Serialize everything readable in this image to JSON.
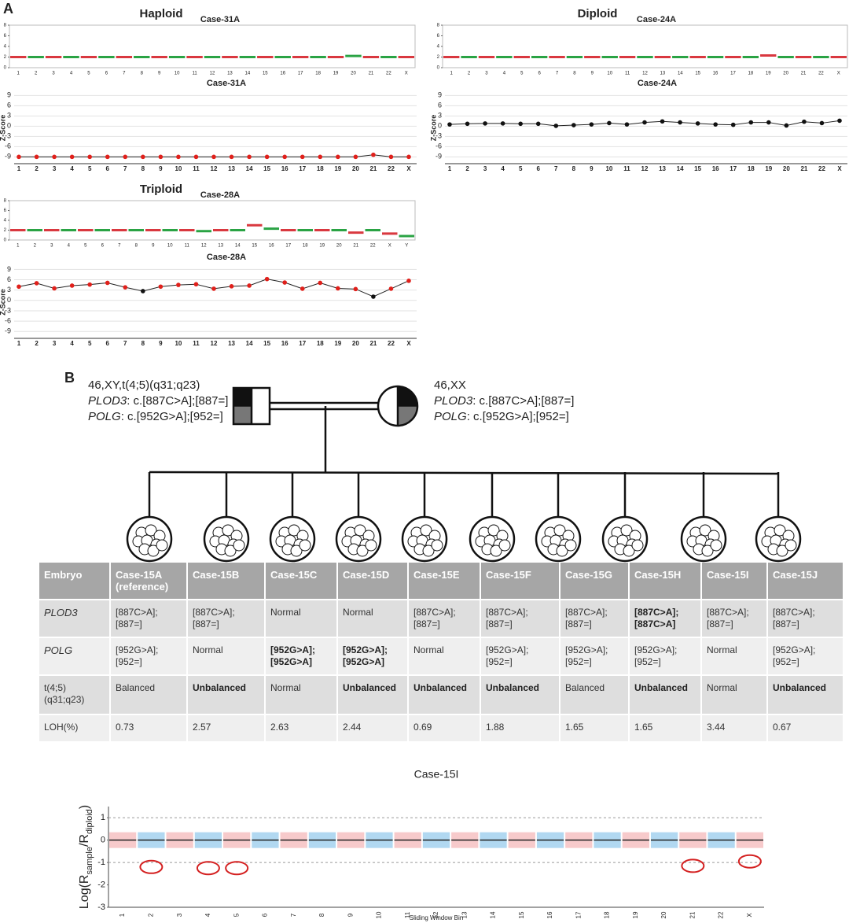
{
  "panel_a_label": "A",
  "panel_b_label": "B",
  "chart_data": [
    {
      "type": "cnv",
      "title": "Haploid",
      "subtitle": "Case-31A",
      "categories": [
        "1",
        "2",
        "3",
        "4",
        "5",
        "6",
        "7",
        "8",
        "9",
        "10",
        "11",
        "12",
        "13",
        "14",
        "15",
        "16",
        "17",
        "18",
        "19",
        "20",
        "21",
        "22",
        "X"
      ],
      "values": [
        2,
        2,
        2,
        2,
        2,
        2,
        2,
        2,
        2,
        2,
        2,
        2,
        2,
        2,
        2,
        2,
        2,
        2,
        2,
        2.2,
        2,
        2,
        2
      ],
      "colors": [
        "#d9383f",
        "#2aa344"
      ],
      "ylim": [
        0,
        8
      ],
      "yticks": [
        0,
        2,
        4,
        6,
        8
      ],
      "grid": false
    },
    {
      "type": "line",
      "title": "Case-31A",
      "ylabel": "Z-Score",
      "categories": [
        "1",
        "2",
        "3",
        "4",
        "5",
        "6",
        "7",
        "8",
        "9",
        "10",
        "11",
        "12",
        "13",
        "14",
        "15",
        "16",
        "17",
        "18",
        "19",
        "20",
        "21",
        "22",
        "X"
      ],
      "values": [
        -9,
        -9,
        -9,
        -9,
        -9,
        -9,
        -9,
        -9,
        -9,
        -9,
        -9,
        -9,
        -9,
        -9,
        -9,
        -9,
        -9,
        -9,
        -9,
        -9,
        -8.4,
        -9,
        -9
      ],
      "marker_color": "#e0201b",
      "ylim": [
        -11,
        10
      ],
      "yticks": [
        9,
        6,
        3,
        0,
        -3,
        -6,
        -9
      ],
      "grid": true
    },
    {
      "type": "cnv",
      "title": "Diploid",
      "subtitle": "Case-24A",
      "categories": [
        "1",
        "2",
        "3",
        "4",
        "5",
        "6",
        "7",
        "8",
        "9",
        "10",
        "11",
        "12",
        "13",
        "14",
        "15",
        "16",
        "17",
        "18",
        "19",
        "20",
        "21",
        "22",
        "X"
      ],
      "values": [
        2,
        2,
        2,
        2,
        2,
        2,
        2,
        2,
        2,
        2,
        2,
        2,
        2,
        2,
        2,
        2,
        2,
        2,
        2.3,
        2,
        2,
        2,
        2
      ],
      "colors": [
        "#d9383f",
        "#2aa344"
      ],
      "ylim": [
        0,
        8
      ],
      "yticks": [
        0,
        2,
        4,
        6,
        8
      ],
      "grid": false
    },
    {
      "type": "line",
      "title": "Case-24A",
      "ylabel": "Z-Score",
      "categories": [
        "1",
        "2",
        "3",
        "4",
        "5",
        "6",
        "7",
        "8",
        "9",
        "10",
        "11",
        "12",
        "13",
        "14",
        "15",
        "16",
        "17",
        "18",
        "19",
        "20",
        "21",
        "22",
        "X"
      ],
      "values": [
        0.5,
        0.7,
        0.8,
        0.8,
        0.7,
        0.7,
        0.1,
        0.3,
        0.5,
        0.9,
        0.5,
        1.1,
        1.4,
        1.1,
        0.8,
        0.5,
        0.4,
        1.1,
        1.1,
        0.2,
        1.3,
        0.9,
        1.6
      ],
      "marker_color": "#111111",
      "ylim": [
        -11,
        10
      ],
      "yticks": [
        9,
        6,
        3,
        0,
        -3,
        -6,
        -9
      ],
      "grid": true
    },
    {
      "type": "cnv",
      "title": "Triploid",
      "subtitle": "Case-28A",
      "categories": [
        "1",
        "2",
        "3",
        "4",
        "5",
        "6",
        "7",
        "8",
        "9",
        "10",
        "11",
        "12",
        "13",
        "14",
        "15",
        "16",
        "17",
        "18",
        "19",
        "20",
        "21",
        "22",
        "X",
        "Y"
      ],
      "values": [
        2,
        2,
        2,
        2,
        2,
        2,
        2,
        2,
        2,
        2,
        2,
        1.8,
        2,
        2,
        3,
        2.3,
        2,
        2,
        2,
        2,
        1.5,
        2,
        1.3,
        0.8
      ],
      "colors": [
        "#d9383f",
        "#2aa344"
      ],
      "ylim": [
        0,
        8
      ],
      "yticks": [
        0,
        2,
        4,
        6,
        8
      ],
      "grid": false
    },
    {
      "type": "line",
      "title": "Case-28A",
      "ylabel": "Z-Score",
      "categories": [
        "1",
        "2",
        "3",
        "4",
        "5",
        "6",
        "7",
        "8",
        "9",
        "10",
        "11",
        "12",
        "13",
        "14",
        "15",
        "16",
        "17",
        "18",
        "19",
        "20",
        "21",
        "22",
        "X"
      ],
      "values": [
        4,
        5,
        3.5,
        4.3,
        4.6,
        5.1,
        3.8,
        2.7,
        4,
        4.5,
        4.7,
        3.4,
        4.1,
        4.3,
        6.2,
        5.2,
        3.4,
        5.1,
        3.5,
        3.3,
        1.1,
        3.4,
        5.7
      ],
      "point_colors": [
        "#e0201b",
        "#e0201b",
        "#e0201b",
        "#e0201b",
        "#e0201b",
        "#e0201b",
        "#e0201b",
        "#111111",
        "#e0201b",
        "#e0201b",
        "#e0201b",
        "#e0201b",
        "#e0201b",
        "#e0201b",
        "#e0201b",
        "#e0201b",
        "#e0201b",
        "#e0201b",
        "#e0201b",
        "#e0201b",
        "#111111",
        "#e0201b",
        "#e0201b"
      ],
      "ylim": [
        -11,
        10
      ],
      "yticks": [
        9,
        6,
        3,
        0,
        -3,
        -6,
        -9
      ],
      "grid": true
    },
    {
      "type": "cnv",
      "title": "Case-15I",
      "xlabel": "Sliding Window Bin",
      "ylabel": [
        "Log(R",
        "sample",
        "/R",
        "diploid",
        ")"
      ],
      "ylabel_subscript": [
        false,
        true,
        false,
        true,
        false
      ],
      "categories": [
        "1",
        "2",
        "3",
        "4",
        "5",
        "6",
        "7",
        "8",
        "9",
        "10",
        "11",
        "12",
        "13",
        "14",
        "15",
        "16",
        "17",
        "18",
        "19",
        "20",
        "21",
        "22",
        "X"
      ],
      "values": [
        0,
        0,
        0,
        0,
        0,
        0,
        0,
        0,
        0,
        0,
        0,
        0,
        0,
        0,
        0,
        0,
        0,
        0,
        0,
        0,
        0,
        0,
        0
      ],
      "annotations": [
        {
          "category": "2",
          "value": -1.2
        },
        {
          "category": "4",
          "value": -1.25
        },
        {
          "category": "5",
          "value": -1.25
        },
        {
          "category": "21",
          "value": -1.15
        },
        {
          "category": "X",
          "value": -0.95
        }
      ],
      "colors": [
        "#e8666a",
        "#1f8fd6"
      ],
      "ref_lines": [
        1,
        -1
      ],
      "xtick_rotation": -90,
      "ylim": [
        -3,
        1.5
      ],
      "yticks": [
        -3,
        -2,
        -1,
        0,
        1
      ],
      "grid": false
    }
  ],
  "pedigree": {
    "father": {
      "karyotype": "46,XY,t(4;5)(q31;q23)",
      "variants": [
        {
          "gene": "PLOD3",
          "text": ": c.[887C>A];[887=]"
        },
        {
          "gene": "POLG",
          "text": ": c.[952G>A];[952=]"
        }
      ]
    },
    "mother": {
      "karyotype": "46,XX",
      "variants": [
        {
          "gene": "PLOD3",
          "text": ": c.[887C>A];[887=]"
        },
        {
          "gene": "POLG",
          "text": ": c.[952G>A];[952=]"
        }
      ]
    }
  },
  "table": {
    "header": [
      "Embryo",
      "Case-15A (reference)",
      "Case-15B",
      "Case-15C",
      "Case-15D",
      "Case-15E",
      "Case-15F",
      "Case-15G",
      "Case-15H",
      "Case-15I",
      "Case-15J"
    ],
    "rows": [
      [
        "PLOD3",
        "[887C>A]; [887=]",
        "[887C>A]; [887=]",
        "Normal",
        "Normal",
        "[887C>A]; [887=]",
        "[887C>A]; [887=]",
        "[887C>A]; [887=]",
        {
          "text": "[887C>A]; [887C>A]",
          "bold": true
        },
        "[887C>A]; [887=]",
        "[887C>A]; [887=]"
      ],
      [
        "POLG",
        "[952G>A]; [952=]",
        "Normal",
        {
          "text": "[952G>A]; [952G>A]",
          "bold": true
        },
        {
          "text": "[952G>A]; [952G>A]",
          "bold": true
        },
        "Normal",
        "[952G>A]; [952=]",
        "[952G>A]; [952=]",
        "[952G>A]; [952=]",
        "Normal",
        "[952G>A]; [952=]"
      ],
      [
        "t(4;5) (q31;q23)",
        "Balanced",
        {
          "text": "Unbalanced",
          "bold": true
        },
        "Normal",
        {
          "text": "Unbalanced",
          "bold": true
        },
        {
          "text": "Unbalanced",
          "bold": true
        },
        {
          "text": "Unbalanced",
          "bold": true
        },
        "Balanced",
        {
          "text": "Unbalanced",
          "bold": true
        },
        "Normal",
        {
          "text": "Unbalanced",
          "bold": true
        }
      ],
      [
        "LOH(%)",
        0.73,
        2.57,
        2.63,
        2.44,
        0.69,
        1.88,
        1.65,
        1.65,
        3.44,
        0.67
      ]
    ]
  }
}
